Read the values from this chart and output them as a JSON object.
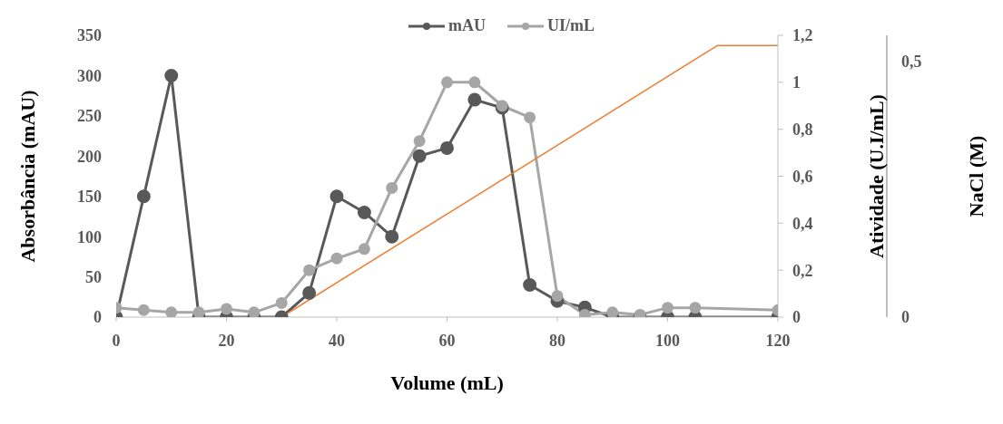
{
  "chart_data": {
    "type": "line",
    "xlabel": "Volume (mL)",
    "ylabel": "Absorbância (mAU)",
    "y2label": "Atividade (U.I/mL)",
    "y3label": "NaCl (M)",
    "x": [
      0,
      5,
      10,
      15,
      20,
      25,
      30,
      35,
      40,
      45,
      50,
      55,
      60,
      65,
      70,
      75,
      80,
      85,
      90,
      95,
      100,
      105,
      120
    ],
    "xlim": [
      0,
      120
    ],
    "xticks": [
      0,
      20,
      40,
      60,
      80,
      100,
      120
    ],
    "ylim": [
      0,
      350
    ],
    "yticks": [
      0,
      50,
      100,
      150,
      200,
      250,
      300,
      350
    ],
    "y2lim": [
      0,
      1.2
    ],
    "y2ticks": [
      0,
      {
        "value": 0.2,
        "label": "0,2"
      },
      {
        "value": 0.4,
        "label": "0,4"
      },
      {
        "value": 0.6,
        "label": "0,6"
      },
      {
        "value": 0.8,
        "label": "0,8"
      },
      1,
      {
        "value": 1.2,
        "label": "1,2"
      }
    ],
    "y3lim": [
      0,
      0.55
    ],
    "y3ticks": [
      0,
      {
        "value": 0.5,
        "label": "0,5"
      }
    ],
    "series": [
      {
        "name": "mAU",
        "color": "#595959",
        "values": [
          0,
          150,
          300,
          0,
          0,
          0,
          0,
          30,
          150,
          130,
          100,
          200,
          210,
          270,
          260,
          40,
          20,
          12,
          0,
          0,
          0,
          0,
          0
        ]
      },
      {
        "name": "UI/mL",
        "color": "#a6a6a6",
        "axis": "y2",
        "values": [
          0.04,
          0.03,
          0.02,
          0.02,
          0.035,
          0.02,
          0.06,
          0.2,
          0.25,
          0.29,
          0.55,
          0.75,
          1.0,
          1.0,
          0.9,
          0.85,
          0.09,
          0.01,
          0.02,
          0.01,
          0.04,
          0.04,
          0.03
        ]
      },
      {
        "color": "#ed7d31",
        "axis": "y3",
        "marker": "none",
        "x": [
          30,
          109,
          120
        ],
        "values": [
          0,
          0.53,
          0.53
        ]
      }
    ],
    "marker": "circle",
    "legend": "top",
    "grid": false
  }
}
